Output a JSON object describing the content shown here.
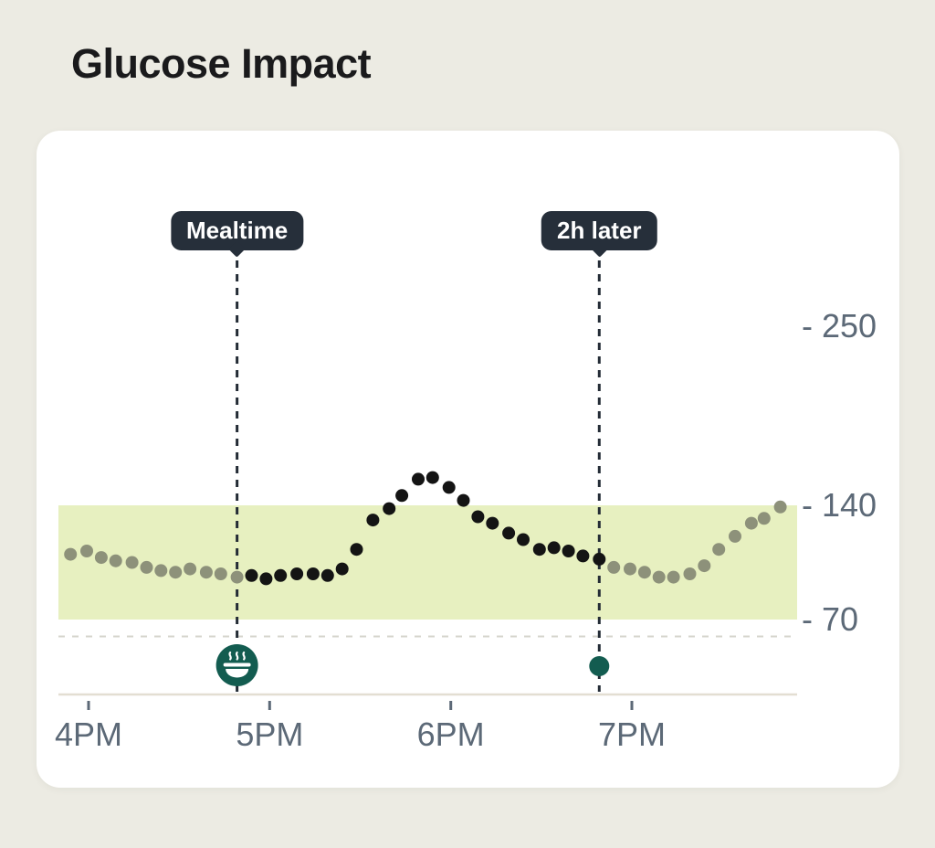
{
  "page": {
    "title": "Glucose Impact"
  },
  "chart": {
    "y_axis": {
      "ticks": [
        {
          "label": "250",
          "value": 250
        },
        {
          "label": "140",
          "value": 140
        },
        {
          "label": "70",
          "value": 70
        }
      ]
    },
    "x_axis": {
      "ticks": [
        {
          "label": "4PM",
          "hour": 16
        },
        {
          "label": "5PM",
          "hour": 17
        },
        {
          "label": "6PM",
          "hour": 18
        },
        {
          "label": "7PM",
          "hour": 19
        }
      ]
    },
    "markers": [
      {
        "id": "mealtime",
        "label": "Mealtime",
        "hour": 16.82,
        "icon": "meal-bowl-icon"
      },
      {
        "id": "two-hours-later",
        "label": "2h later",
        "hour": 18.82,
        "icon": "reading-dot"
      }
    ],
    "target_range": {
      "low": 70,
      "high": 140
    }
  },
  "chart_data": {
    "type": "scatter",
    "title": "Glucose Impact",
    "x_unit": "hour_of_day",
    "xlim": [
      15.83,
      19.92
    ],
    "ylim": [
      55,
      270
    ],
    "grid": "single dashed line just below 70",
    "legend": "none",
    "target_band": {
      "low": 70,
      "high": 140
    },
    "annotations": [
      {
        "label": "Mealtime",
        "hour": 16.82
      },
      {
        "label": "2h later",
        "hour": 18.82
      }
    ],
    "series": [
      {
        "name": "before-meal",
        "color": "#8D917A",
        "points": [
          [
            15.9,
            110
          ],
          [
            15.99,
            112
          ],
          [
            16.07,
            108
          ],
          [
            16.15,
            106
          ],
          [
            16.24,
            105
          ],
          [
            16.32,
            102
          ],
          [
            16.4,
            100
          ],
          [
            16.48,
            99
          ],
          [
            16.56,
            101
          ],
          [
            16.65,
            99
          ],
          [
            16.73,
            98
          ],
          [
            16.82,
            96
          ]
        ]
      },
      {
        "name": "meal-to-2h",
        "color": "#141414",
        "points": [
          [
            16.9,
            97
          ],
          [
            16.98,
            95
          ],
          [
            17.06,
            97
          ],
          [
            17.15,
            98
          ],
          [
            17.24,
            98
          ],
          [
            17.32,
            97
          ],
          [
            17.4,
            101
          ],
          [
            17.48,
            113
          ],
          [
            17.57,
            131
          ],
          [
            17.66,
            138
          ],
          [
            17.73,
            146
          ],
          [
            17.82,
            156
          ],
          [
            17.9,
            157
          ],
          [
            17.99,
            151
          ],
          [
            18.07,
            143
          ],
          [
            18.15,
            133
          ],
          [
            18.23,
            129
          ],
          [
            18.32,
            123
          ],
          [
            18.4,
            119
          ],
          [
            18.49,
            113
          ],
          [
            18.57,
            114
          ],
          [
            18.65,
            112
          ],
          [
            18.73,
            109
          ],
          [
            18.82,
            107
          ]
        ]
      },
      {
        "name": "after-2h",
        "color": "#8D917A",
        "points": [
          [
            18.9,
            102
          ],
          [
            18.99,
            101
          ],
          [
            19.07,
            99
          ],
          [
            19.15,
            96
          ],
          [
            19.23,
            96
          ],
          [
            19.32,
            98
          ],
          [
            19.4,
            103
          ],
          [
            19.48,
            113
          ],
          [
            19.57,
            121
          ],
          [
            19.66,
            129
          ],
          [
            19.73,
            132
          ],
          [
            19.82,
            139
          ]
        ]
      }
    ]
  },
  "colors": {
    "page_bg": "#ECEBE3",
    "card_bg": "#FFFFFF",
    "title_text": "#1A1A1C",
    "axis_label": "#5C6977",
    "badge_bg": "#262F3A",
    "badge_text": "#FFFFFF",
    "marker_line": "#232B35",
    "target_band": "#E7F0C0",
    "gridline": "#D6D5CD",
    "axis_line": "#E3DED2",
    "dot_dark": "#141414",
    "dot_gray": "#8D917A",
    "accent_teal": "#135C50"
  }
}
